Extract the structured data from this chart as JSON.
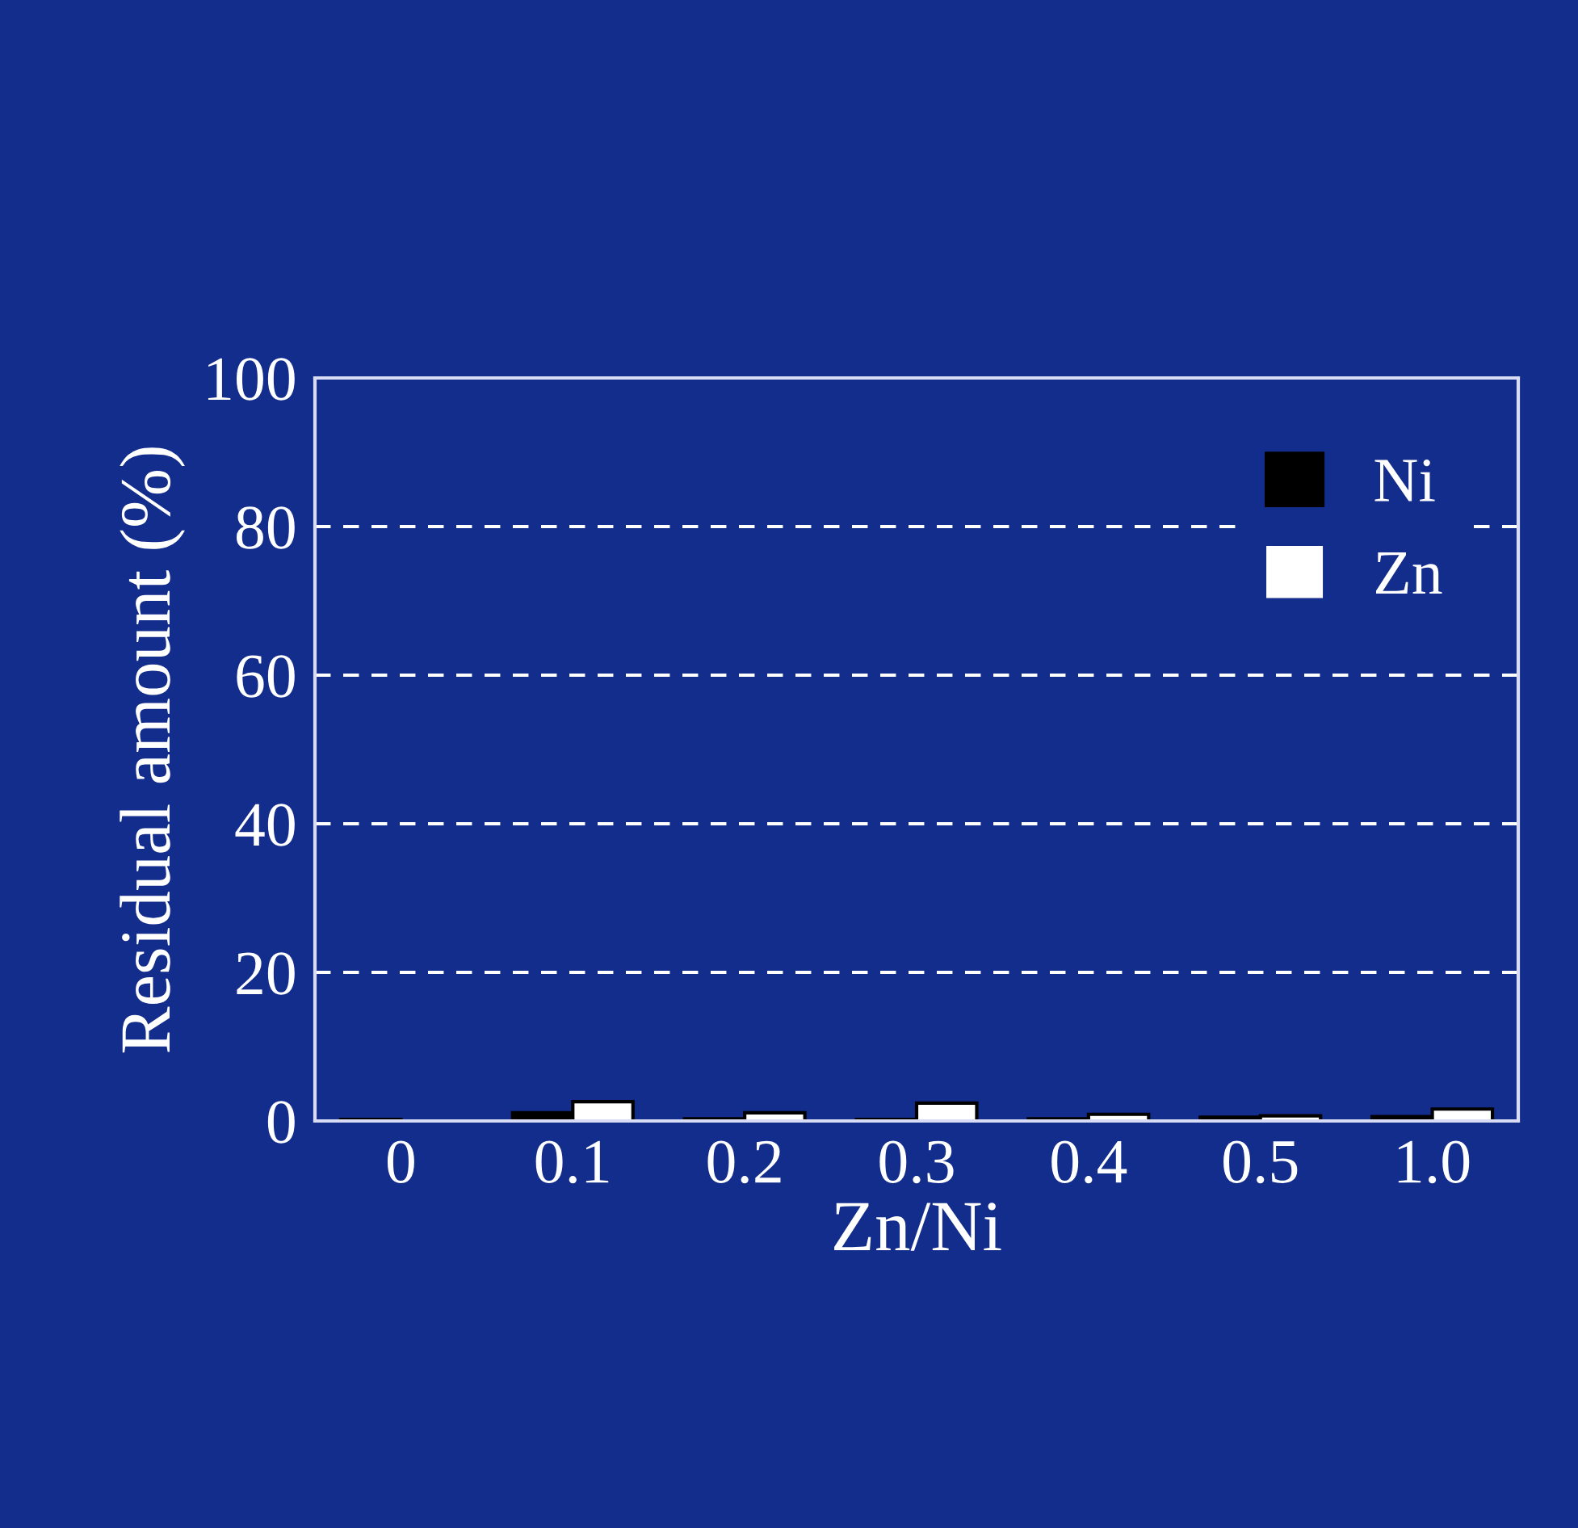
{
  "chart_data": {
    "type": "bar",
    "xlabel": "Zn/Ni",
    "ylabel": "Residual amount (%)",
    "categories": [
      "0",
      "0.1",
      "0.2",
      "0.3",
      "0.4",
      "0.5",
      "1.0"
    ],
    "series": [
      {
        "name": "Ni",
        "color": "#000000",
        "values": [
          0.2,
          1.1,
          0.3,
          0.2,
          0.3,
          0.5,
          0.6
        ]
      },
      {
        "name": "Zn",
        "color": "#ffffff",
        "values": [
          0,
          2.6,
          1.1,
          2.4,
          0.9,
          0.7,
          1.6
        ]
      }
    ],
    "ylim": [
      0,
      100
    ],
    "yticks": [
      0,
      20,
      40,
      60,
      80,
      100
    ],
    "grid": "y",
    "legend": "top right"
  }
}
